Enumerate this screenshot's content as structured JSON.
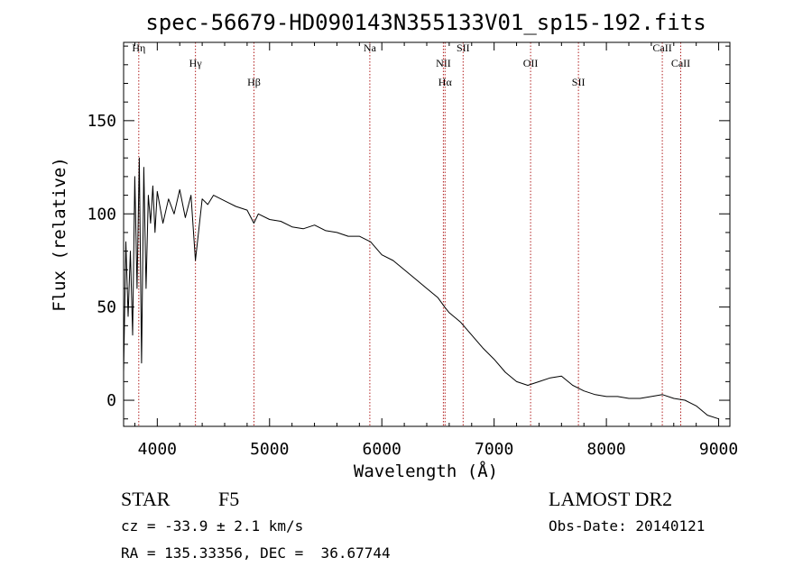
{
  "chart_data": {
    "type": "line",
    "title": "spec-56679-HD090143N355133V01_sp15-192.fits",
    "xlabel": "Wavelength (Å)",
    "ylabel": "Flux (relative)",
    "xlim": [
      3700,
      9100
    ],
    "ylim": [
      -14,
      192
    ],
    "xticks": [
      4000,
      5000,
      6000,
      7000,
      8000,
      9000
    ],
    "yticks": [
      0,
      50,
      100,
      150
    ],
    "grid": false,
    "line_color": "#000000",
    "marker_color": "#b22222",
    "series": [
      {
        "x": [
          3700,
          3720,
          3740,
          3760,
          3780,
          3800,
          3820,
          3840,
          3860,
          3880,
          3900,
          3920,
          3940,
          3960,
          3980,
          4000,
          4050,
          4100,
          4150,
          4200,
          4250,
          4300,
          4340,
          4400,
          4450,
          4500,
          4600,
          4700,
          4800,
          4860,
          4900,
          5000,
          5100,
          5200,
          5300,
          5400,
          5500,
          5600,
          5700,
          5800,
          5900,
          6000,
          6100,
          6200,
          6300,
          6400,
          6500,
          6560,
          6600,
          6700,
          6800,
          6900,
          7000,
          7100,
          7200,
          7300,
          7400,
          7500,
          7600,
          7700,
          7800,
          7900,
          8000,
          8100,
          8200,
          8300,
          8400,
          8500,
          8600,
          8700,
          8800,
          8900,
          9000
        ],
        "y": [
          15,
          85,
          45,
          80,
          35,
          120,
          60,
          130,
          20,
          125,
          60,
          110,
          95,
          115,
          90,
          112,
          95,
          108,
          100,
          113,
          98,
          110,
          75,
          108,
          105,
          110,
          107,
          104,
          102,
          95,
          100,
          97,
          96,
          93,
          92,
          94,
          91,
          90,
          88,
          88,
          85,
          78,
          75,
          70,
          65,
          60,
          55,
          50,
          47,
          42,
          35,
          28,
          22,
          15,
          10,
          8,
          10,
          12,
          13,
          8,
          5,
          3,
          2,
          2,
          1,
          1,
          2,
          3,
          1,
          0,
          -3,
          -8,
          -10
        ]
      }
    ],
    "lines": [
      {
        "label": "Hη",
        "x": 3835
      },
      {
        "label": "Hγ",
        "x": 4340
      },
      {
        "label": "Hβ",
        "x": 4861
      },
      {
        "label": "Na",
        "x": 5893
      },
      {
        "label": "NII",
        "x": 6548
      },
      {
        "label": "Hα",
        "x": 6563
      },
      {
        "label": "SII",
        "x": 6724
      },
      {
        "label": "OII",
        "x": 7325
      },
      {
        "label": "SII",
        "x": 7751
      },
      {
        "label": "CaII",
        "x": 8498
      },
      {
        "label": "CaII",
        "x": 8662
      }
    ]
  },
  "info": {
    "object_class": "STAR",
    "subclass": "F5",
    "survey": "LAMOST DR2",
    "cz": "cz = -33.9 ± 2.1 km/s",
    "obs_date": "Obs-Date: 20140121",
    "coords": "RA = 135.33356, DEC =  36.67744"
  }
}
